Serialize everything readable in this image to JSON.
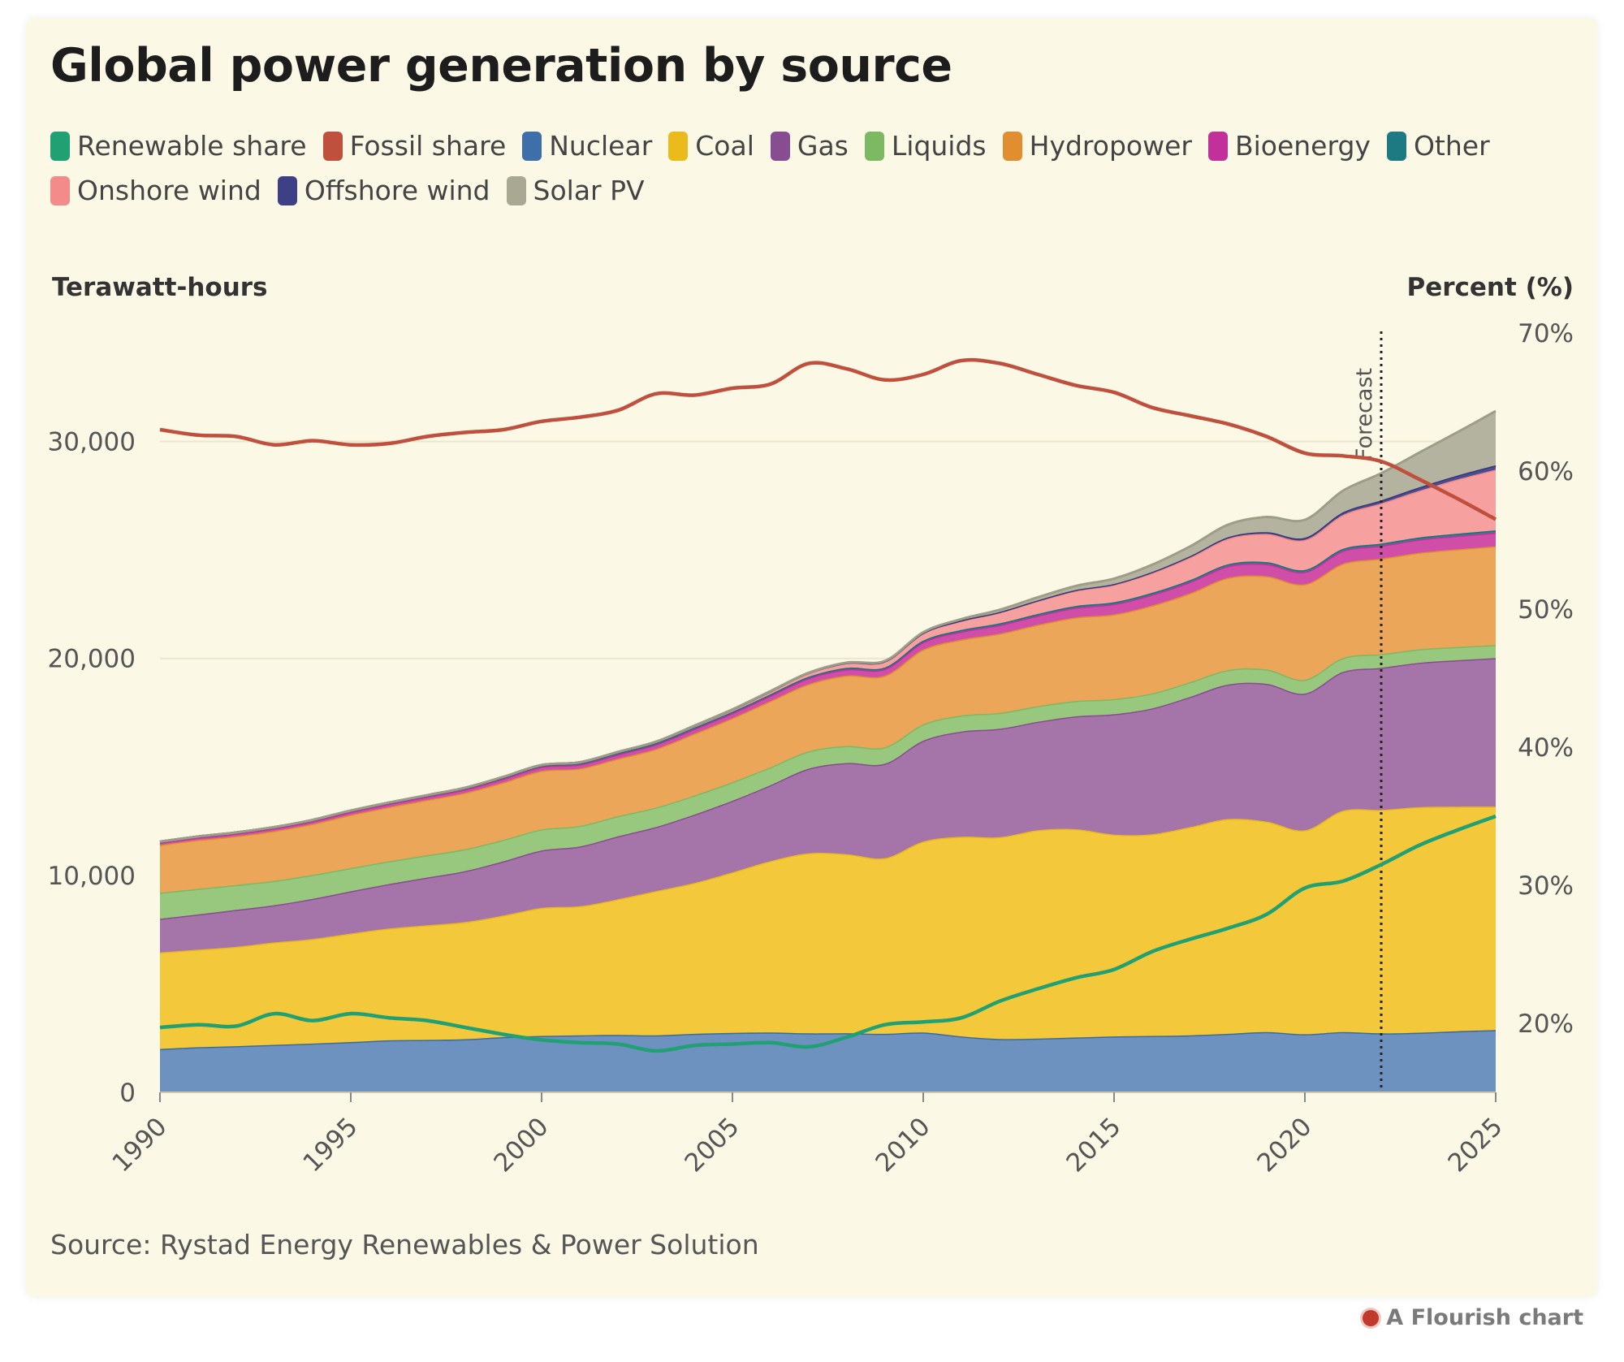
{
  "chart_data": {
    "type": "area",
    "title": "Global power generation by source",
    "ylabel": "Terawatt-hours",
    "y2label": "Percent (%)",
    "ylim": [
      0,
      35000
    ],
    "y2lim": [
      15,
      70
    ],
    "yticks": [
      0,
      10000,
      20000,
      30000
    ],
    "ytick_labels": [
      "0",
      "10,000",
      "20,000",
      "30,000"
    ],
    "y2ticks": [
      20,
      30,
      40,
      50,
      60,
      70
    ],
    "y2tick_labels": [
      "20%",
      "30%",
      "40%",
      "50%",
      "60%",
      "70%"
    ],
    "xticks": [
      1990,
      1995,
      2000,
      2005,
      2010,
      2015,
      2020,
      2025
    ],
    "xtick_labels": [
      "1990",
      "1995",
      "2000",
      "2005",
      "2010",
      "2015",
      "2020",
      "2025"
    ],
    "xlim": [
      1990,
      2025
    ],
    "forecast_year": 2022,
    "forecast_label": "Forecast",
    "legend_placement": "top",
    "grid": true,
    "x": [
      1990,
      1991,
      1992,
      1993,
      1994,
      1995,
      1996,
      1997,
      1998,
      1999,
      2000,
      2001,
      2002,
      2003,
      2004,
      2005,
      2006,
      2007,
      2008,
      2009,
      2010,
      2011,
      2012,
      2013,
      2014,
      2015,
      2016,
      2017,
      2018,
      2019,
      2020,
      2021,
      2022,
      2023,
      2024,
      2025
    ],
    "stacked_series": [
      {
        "name": "Nuclear",
        "color": "#6e92c0",
        "line": "#3b6aa0",
        "values": [
          2000,
          2080,
          2130,
          2190,
          2250,
          2320,
          2400,
          2420,
          2450,
          2550,
          2600,
          2630,
          2650,
          2630,
          2700,
          2740,
          2760,
          2720,
          2730,
          2700,
          2760,
          2580,
          2460,
          2480,
          2530,
          2580,
          2600,
          2630,
          2700,
          2780,
          2680,
          2780,
          2720,
          2750,
          2820,
          2870
        ]
      },
      {
        "name": "Coal",
        "color": "#f3c93b",
        "line": "#e9b91c",
        "values": [
          4450,
          4500,
          4580,
          4720,
          4820,
          5000,
          5150,
          5280,
          5400,
          5600,
          5900,
          5950,
          6250,
          6650,
          6950,
          7400,
          7900,
          8300,
          8250,
          8100,
          8800,
          9200,
          9300,
          9600,
          9600,
          9300,
          9300,
          9600,
          9900,
          9700,
          9400,
          10200,
          10300,
          10400,
          10350,
          10300
        ]
      },
      {
        "name": "Gas",
        "color": "#a574a8",
        "line": "#874d90",
        "values": [
          1550,
          1620,
          1700,
          1720,
          1850,
          1950,
          2050,
          2200,
          2350,
          2500,
          2650,
          2750,
          2900,
          2950,
          3150,
          3300,
          3500,
          3900,
          4200,
          4350,
          4650,
          4850,
          5000,
          5000,
          5200,
          5550,
          5800,
          6000,
          6200,
          6350,
          6300,
          6400,
          6550,
          6650,
          6750,
          6850
        ]
      },
      {
        "name": "Liquids",
        "color": "#98c77e",
        "line": "#7db862",
        "values": [
          1200,
          1180,
          1150,
          1120,
          1100,
          1070,
          1050,
          1030,
          1010,
          990,
          970,
          950,
          930,
          900,
          880,
          860,
          830,
          800,
          780,
          760,
          750,
          740,
          730,
          720,
          710,
          700,
          690,
          680,
          670,
          660,
          640,
          640,
          630,
          620,
          610,
          600
        ]
      },
      {
        "name": "Hydropower",
        "color": "#eba65a",
        "line": "#e08e30",
        "values": [
          2200,
          2250,
          2250,
          2300,
          2350,
          2450,
          2500,
          2550,
          2600,
          2650,
          2700,
          2650,
          2650,
          2700,
          2850,
          2950,
          3050,
          3100,
          3250,
          3300,
          3450,
          3500,
          3650,
          3750,
          3850,
          3900,
          4050,
          4100,
          4250,
          4300,
          4400,
          4350,
          4400,
          4450,
          4500,
          4550
        ]
      },
      {
        "name": "Bioenergy",
        "color": "#d04da8",
        "line": "#c23199",
        "values": [
          110,
          115,
          120,
          125,
          130,
          140,
          145,
          150,
          160,
          170,
          180,
          190,
          200,
          210,
          220,
          230,
          250,
          270,
          290,
          310,
          340,
          370,
          400,
          420,
          450,
          480,
          500,
          520,
          540,
          560,
          570,
          590,
          600,
          610,
          620,
          630
        ]
      },
      {
        "name": "Other",
        "color": "#28868e",
        "line": "#1d7078",
        "values": [
          40,
          41,
          42,
          43,
          44,
          45,
          46,
          47,
          48,
          50,
          52,
          54,
          56,
          58,
          60,
          62,
          64,
          66,
          68,
          70,
          72,
          74,
          76,
          78,
          80,
          82,
          84,
          86,
          88,
          90,
          92,
          94,
          96,
          98,
          100,
          102
        ]
      },
      {
        "name": "Onshore wind",
        "color": "#f6a1a0",
        "line": "#f28b89",
        "values": [
          4,
          5,
          6,
          8,
          10,
          12,
          14,
          17,
          22,
          30,
          32,
          37,
          50,
          60,
          80,
          100,
          130,
          170,
          220,
          270,
          340,
          420,
          500,
          600,
          700,
          800,
          920,
          1050,
          1180,
          1300,
          1380,
          1560,
          1850,
          2150,
          2500,
          2800
        ]
      },
      {
        "name": "Offshore wind",
        "color": "#4a4d8f",
        "line": "#34377a",
        "values": [
          0,
          0,
          0,
          0,
          0,
          0,
          0,
          0,
          0,
          0,
          0,
          0,
          1,
          2,
          3,
          5,
          6,
          8,
          10,
          12,
          15,
          19,
          25,
          30,
          35,
          40,
          45,
          55,
          65,
          80,
          100,
          120,
          140,
          160,
          180,
          200
        ]
      },
      {
        "name": "Solar PV",
        "color": "#b3b39f",
        "line": "#9e9e88",
        "values": [
          0,
          0,
          0,
          1,
          1,
          1,
          1,
          1,
          1,
          1,
          1,
          2,
          2,
          3,
          3,
          4,
          5,
          8,
          12,
          20,
          32,
          60,
          100,
          140,
          190,
          250,
          330,
          450,
          580,
          700,
          830,
          1000,
          1250,
          1600,
          2000,
          2500
        ]
      }
    ],
    "line_series": [
      {
        "name": "Renewable share",
        "color": "#21a173",
        "axis": "right",
        "values": [
          19.7,
          19.9,
          19.8,
          20.7,
          20.2,
          20.7,
          20.4,
          20.2,
          19.7,
          19.2,
          18.8,
          18.6,
          18.5,
          18.0,
          18.4,
          18.5,
          18.6,
          18.3,
          19.0,
          19.9,
          20.1,
          20.4,
          21.6,
          22.5,
          23.3,
          23.9,
          25.2,
          26.1,
          26.9,
          27.9,
          29.8,
          30.3,
          31.5,
          32.9,
          34.0,
          35.0
        ]
      },
      {
        "name": "Fossil share",
        "color": "#c0503e",
        "axis": "right",
        "values": [
          63.0,
          62.6,
          62.5,
          61.9,
          62.2,
          61.9,
          62.0,
          62.5,
          62.8,
          63.0,
          63.6,
          63.9,
          64.4,
          65.6,
          65.5,
          66.0,
          66.3,
          67.8,
          67.4,
          66.6,
          67.0,
          68.0,
          67.8,
          67.0,
          66.2,
          65.7,
          64.6,
          64.0,
          63.4,
          62.5,
          61.3,
          61.1,
          60.7,
          59.4,
          58.0,
          56.5
        ]
      }
    ],
    "legend": [
      {
        "label": "Renewable share",
        "color": "#21a173"
      },
      {
        "label": "Fossil share",
        "color": "#c0503e"
      },
      {
        "label": "Nuclear",
        "color": "#3f6fa8"
      },
      {
        "label": "Coal",
        "color": "#ebbb1c"
      },
      {
        "label": "Gas",
        "color": "#874d90"
      },
      {
        "label": "Liquids",
        "color": "#7db862"
      },
      {
        "label": "Hydropower",
        "color": "#e08e30"
      },
      {
        "label": "Bioenergy",
        "color": "#c23199"
      },
      {
        "label": "Other",
        "color": "#1d7a82"
      },
      {
        "label": "Onshore wind",
        "color": "#f28b89"
      },
      {
        "label": "Offshore wind",
        "color": "#3d4085"
      },
      {
        "label": "Solar PV",
        "color": "#a8a893"
      }
    ]
  },
  "source": "Source: Rystad Energy Renewables & Power Solution",
  "credit": "A Flourish chart"
}
